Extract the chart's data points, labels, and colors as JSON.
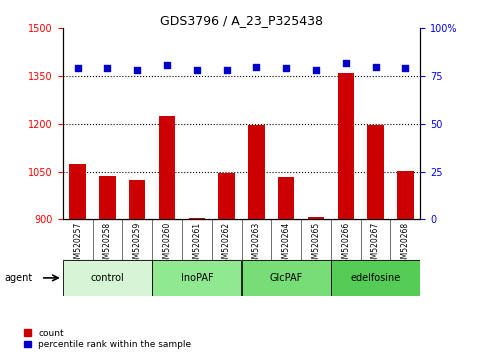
{
  "title": "GDS3796 / A_23_P325438",
  "samples": [
    "GSM520257",
    "GSM520258",
    "GSM520259",
    "GSM520260",
    "GSM520261",
    "GSM520262",
    "GSM520263",
    "GSM520264",
    "GSM520265",
    "GSM520266",
    "GSM520267",
    "GSM520268"
  ],
  "bar_values": [
    1075,
    1038,
    1025,
    1225,
    905,
    1045,
    1195,
    1032,
    908,
    1360,
    1195,
    1052
  ],
  "percentile_values": [
    79,
    79,
    78,
    81,
    78,
    78,
    80,
    79,
    78,
    82,
    80,
    79
  ],
  "groups": [
    {
      "label": "control",
      "start": 0,
      "end": 3,
      "color": "#d6f5d6"
    },
    {
      "label": "InoPAF",
      "start": 3,
      "end": 6,
      "color": "#90e890"
    },
    {
      "label": "GlcPAF",
      "start": 6,
      "end": 9,
      "color": "#77dd77"
    },
    {
      "label": "edelfosine",
      "start": 9,
      "end": 12,
      "color": "#55cc55"
    }
  ],
  "ylim_left": [
    900,
    1500
  ],
  "ylim_right": [
    0,
    100
  ],
  "yticks_left": [
    900,
    1050,
    1200,
    1350,
    1500
  ],
  "yticks_right": [
    0,
    25,
    50,
    75,
    100
  ],
  "bar_color": "#cc0000",
  "dot_color": "#0000cc",
  "background_color": "#ffffff",
  "tick_area_color": "#c8c8c8",
  "legend_count_label": "count",
  "legend_pct_label": "percentile rank within the sample",
  "agent_label": "agent"
}
